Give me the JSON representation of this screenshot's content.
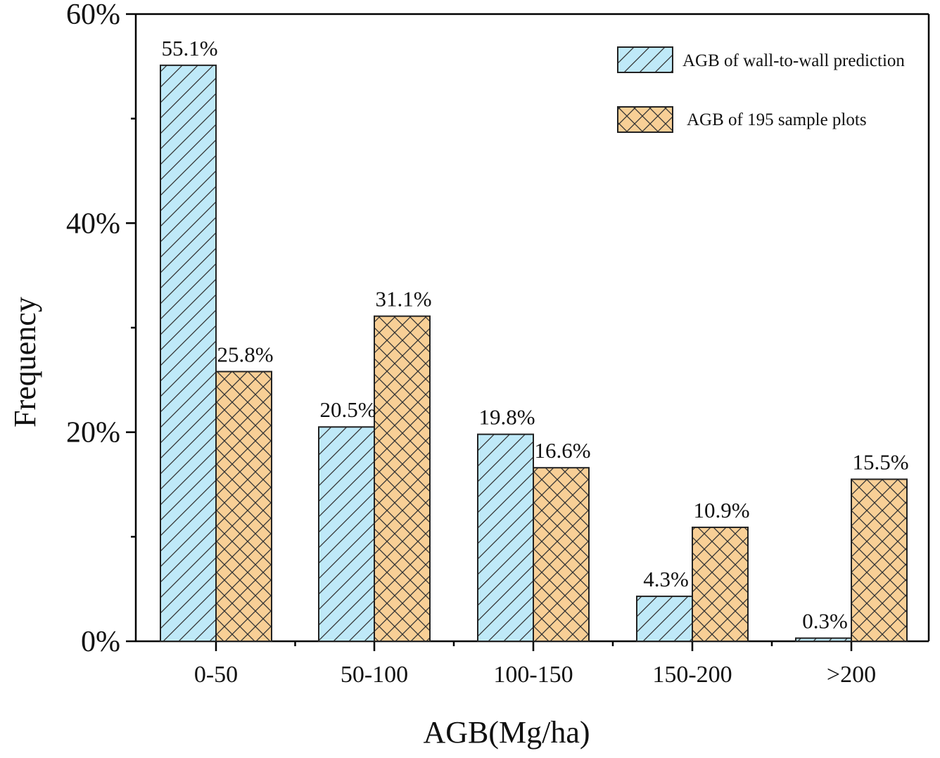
{
  "chart_data": {
    "type": "bar",
    "title": "",
    "xlabel": "AGB(Mg/ha)",
    "ylabel": "Frequency",
    "ylim": [
      0,
      60
    ],
    "yticks": [
      {
        "value": 0,
        "label": "0%"
      },
      {
        "value": 20,
        "label": "20%"
      },
      {
        "value": 40,
        "label": "40%"
      },
      {
        "value": 60,
        "label": "60%"
      }
    ],
    "categories": [
      "0-50",
      "50-100",
      "100-150",
      "150-200",
      ">200"
    ],
    "series": [
      {
        "name": "AGB of wall-to-wall prediction",
        "values": [
          55.1,
          20.5,
          19.8,
          4.3,
          0.3
        ],
        "labels": [
          "55.1%",
          "20.5%",
          "19.8%",
          "4.3%",
          "0.3%"
        ],
        "color": "#bfe9f8",
        "pattern": "diagonal"
      },
      {
        "name": "AGB of 195 sample plots",
        "values": [
          25.8,
          31.1,
          16.6,
          10.9,
          15.5
        ],
        "labels": [
          "25.8%",
          "31.1%",
          "16.6%",
          "10.9%",
          "15.5%"
        ],
        "color": "#f8cf96",
        "pattern": "crosshatch"
      }
    ],
    "legend": {
      "position": "top-right"
    },
    "grid": false
  }
}
